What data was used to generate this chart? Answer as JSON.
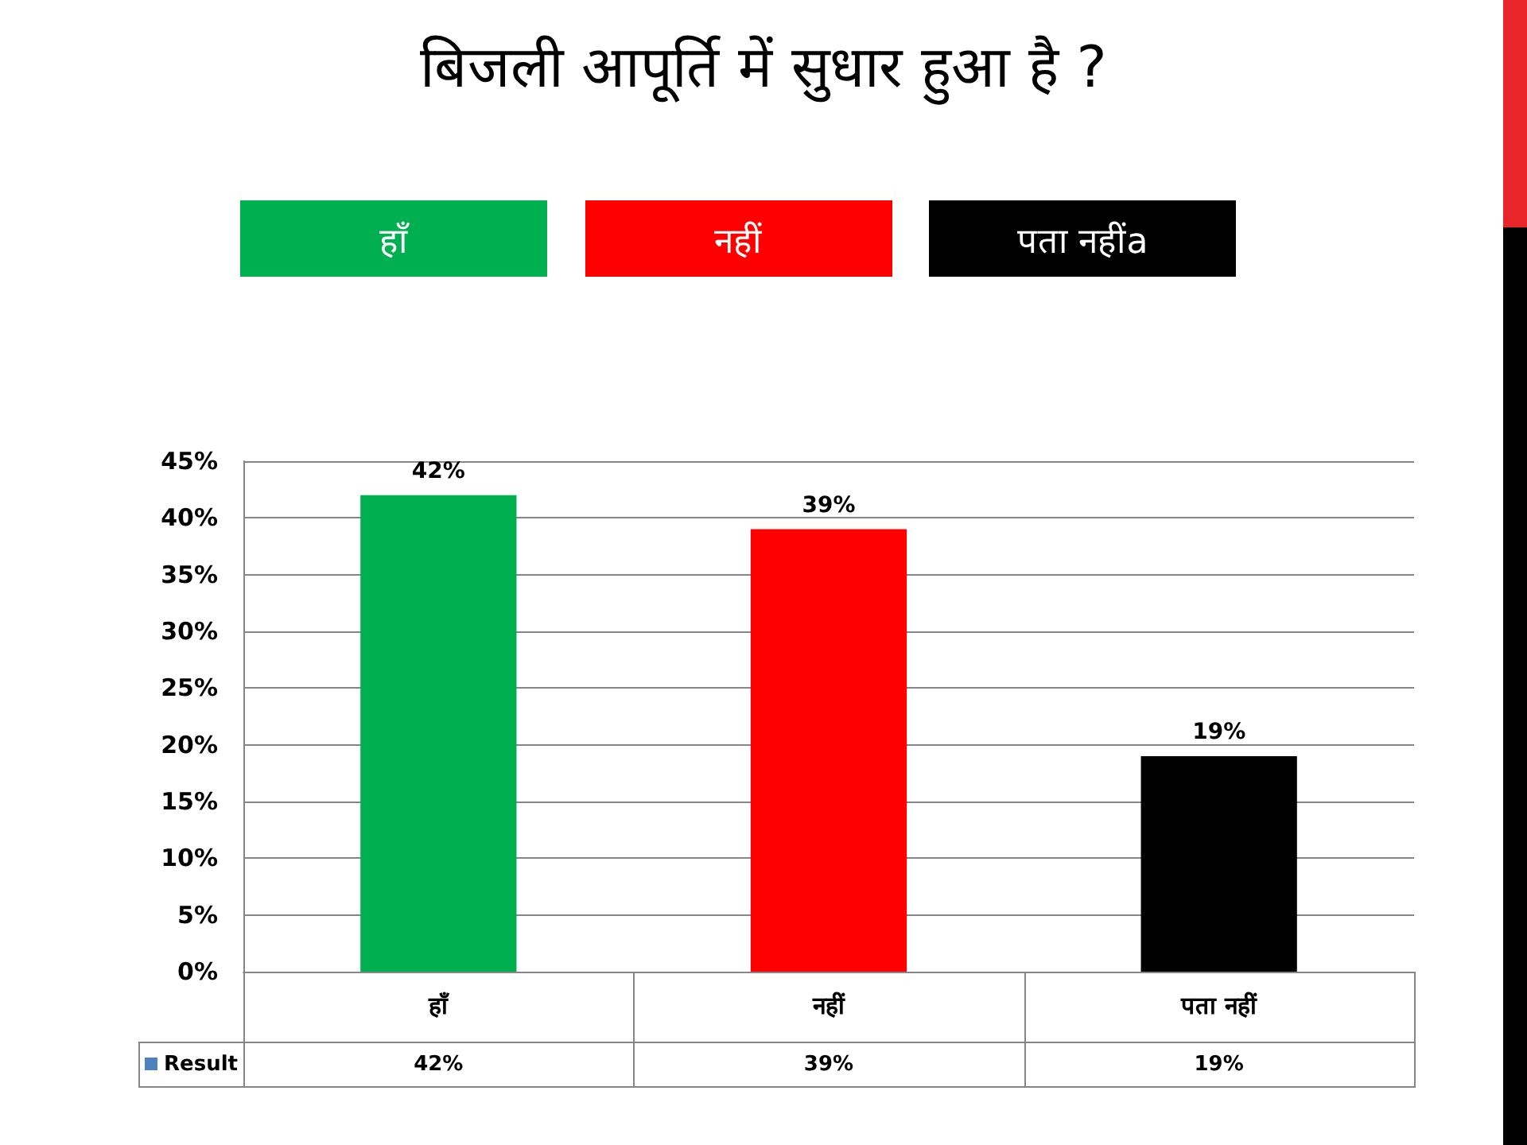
{
  "chart_data": {
    "type": "bar",
    "title": "बिजली आपूर्ति में सुधार हुआ है ?",
    "annotations": [
      "हाँ",
      "नहीं",
      "पता नहींa"
    ],
    "categories": [
      "हाँ",
      "नहीं",
      "पता नहीं"
    ],
    "series": [
      {
        "name": "Result",
        "color": "#4f81bd",
        "colors": [
          "#00b050",
          "#ff0000",
          "#000000"
        ],
        "values": [
          42,
          39,
          19
        ],
        "value_labels": [
          "42%",
          "39%",
          "19%"
        ]
      }
    ],
    "ylim": [
      0,
      45
    ],
    "yticks": [
      {
        "value": 0,
        "label": "0%"
      },
      {
        "value": 5,
        "label": "5%"
      },
      {
        "value": 10,
        "label": "10%"
      },
      {
        "value": 15,
        "label": "15%"
      },
      {
        "value": 20,
        "label": "20%"
      },
      {
        "value": 25,
        "label": "25%"
      },
      {
        "value": 30,
        "label": "30%"
      },
      {
        "value": 35,
        "label": "35%"
      },
      {
        "value": 40,
        "label": "40%"
      },
      {
        "value": 45,
        "label": "45%"
      }
    ],
    "grid": "y",
    "legend": "bottom"
  }
}
